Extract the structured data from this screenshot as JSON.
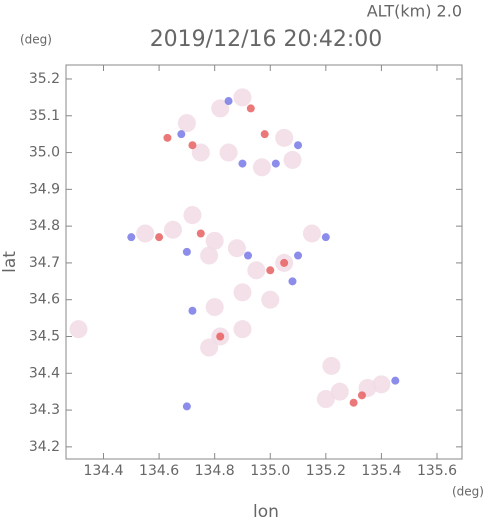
{
  "chart_data": {
    "type": "scatter",
    "title": "2019/12/16 20:42:00",
    "subtitle": "ALT(km) 2.0",
    "y_unit": "(deg)",
    "x_unit": "(deg)",
    "xlabel": "lon",
    "ylabel": "lat",
    "xlim": [
      134.265,
      135.69
    ],
    "ylim": [
      34.167,
      35.238
    ],
    "xticks": [
      134.4,
      134.6,
      134.8,
      {
        "value": 135,
        "label": "135.0"
      },
      135.2,
      135.4,
      135.6
    ],
    "yticks": [
      34.2,
      34.3,
      34.4,
      34.5,
      34.6,
      34.7,
      34.8,
      34.9,
      {
        "value": 35,
        "label": "35.0"
      },
      35.1,
      35.2
    ],
    "series": [
      {
        "color": "#f2dde6",
        "x": [
          134.82,
          134.9,
          134.7,
          134.75,
          134.85,
          134.97,
          135.08,
          135.05,
          134.55,
          134.65,
          134.72,
          134.8,
          134.78,
          134.88,
          134.95,
          135.05,
          135.15,
          135.0,
          134.9,
          134.8,
          134.82,
          134.78,
          134.9,
          135.2,
          135.25,
          135.35,
          135.4,
          135.22,
          134.31
        ],
        "y": [
          35.12,
          35.15,
          35.08,
          35.0,
          35.0,
          34.96,
          34.98,
          35.04,
          34.78,
          34.79,
          34.83,
          34.76,
          34.72,
          34.74,
          34.68,
          34.7,
          34.78,
          34.6,
          34.62,
          34.58,
          34.5,
          34.47,
          34.52,
          34.33,
          34.35,
          34.36,
          34.37,
          34.42,
          34.52
        ]
      },
      {
        "color": "#7878e8",
        "x": [
          134.85,
          134.68,
          134.9,
          135.02,
          135.1,
          134.5,
          134.7,
          134.92,
          135.1,
          135.08,
          134.72,
          134.7,
          135.45,
          135.2
        ],
        "y": [
          35.14,
          35.05,
          34.97,
          34.97,
          35.02,
          34.77,
          34.73,
          34.72,
          34.72,
          34.65,
          34.57,
          34.31,
          34.38,
          34.77
        ]
      },
      {
        "color": "#e86060",
        "x": [
          134.63,
          134.93,
          134.72,
          134.98,
          134.6,
          134.75,
          135.0,
          135.05,
          134.82,
          135.3,
          135.33
        ],
        "y": [
          35.04,
          35.12,
          35.02,
          35.05,
          34.77,
          34.78,
          34.68,
          34.7,
          34.5,
          34.32,
          34.34
        ]
      }
    ]
  }
}
